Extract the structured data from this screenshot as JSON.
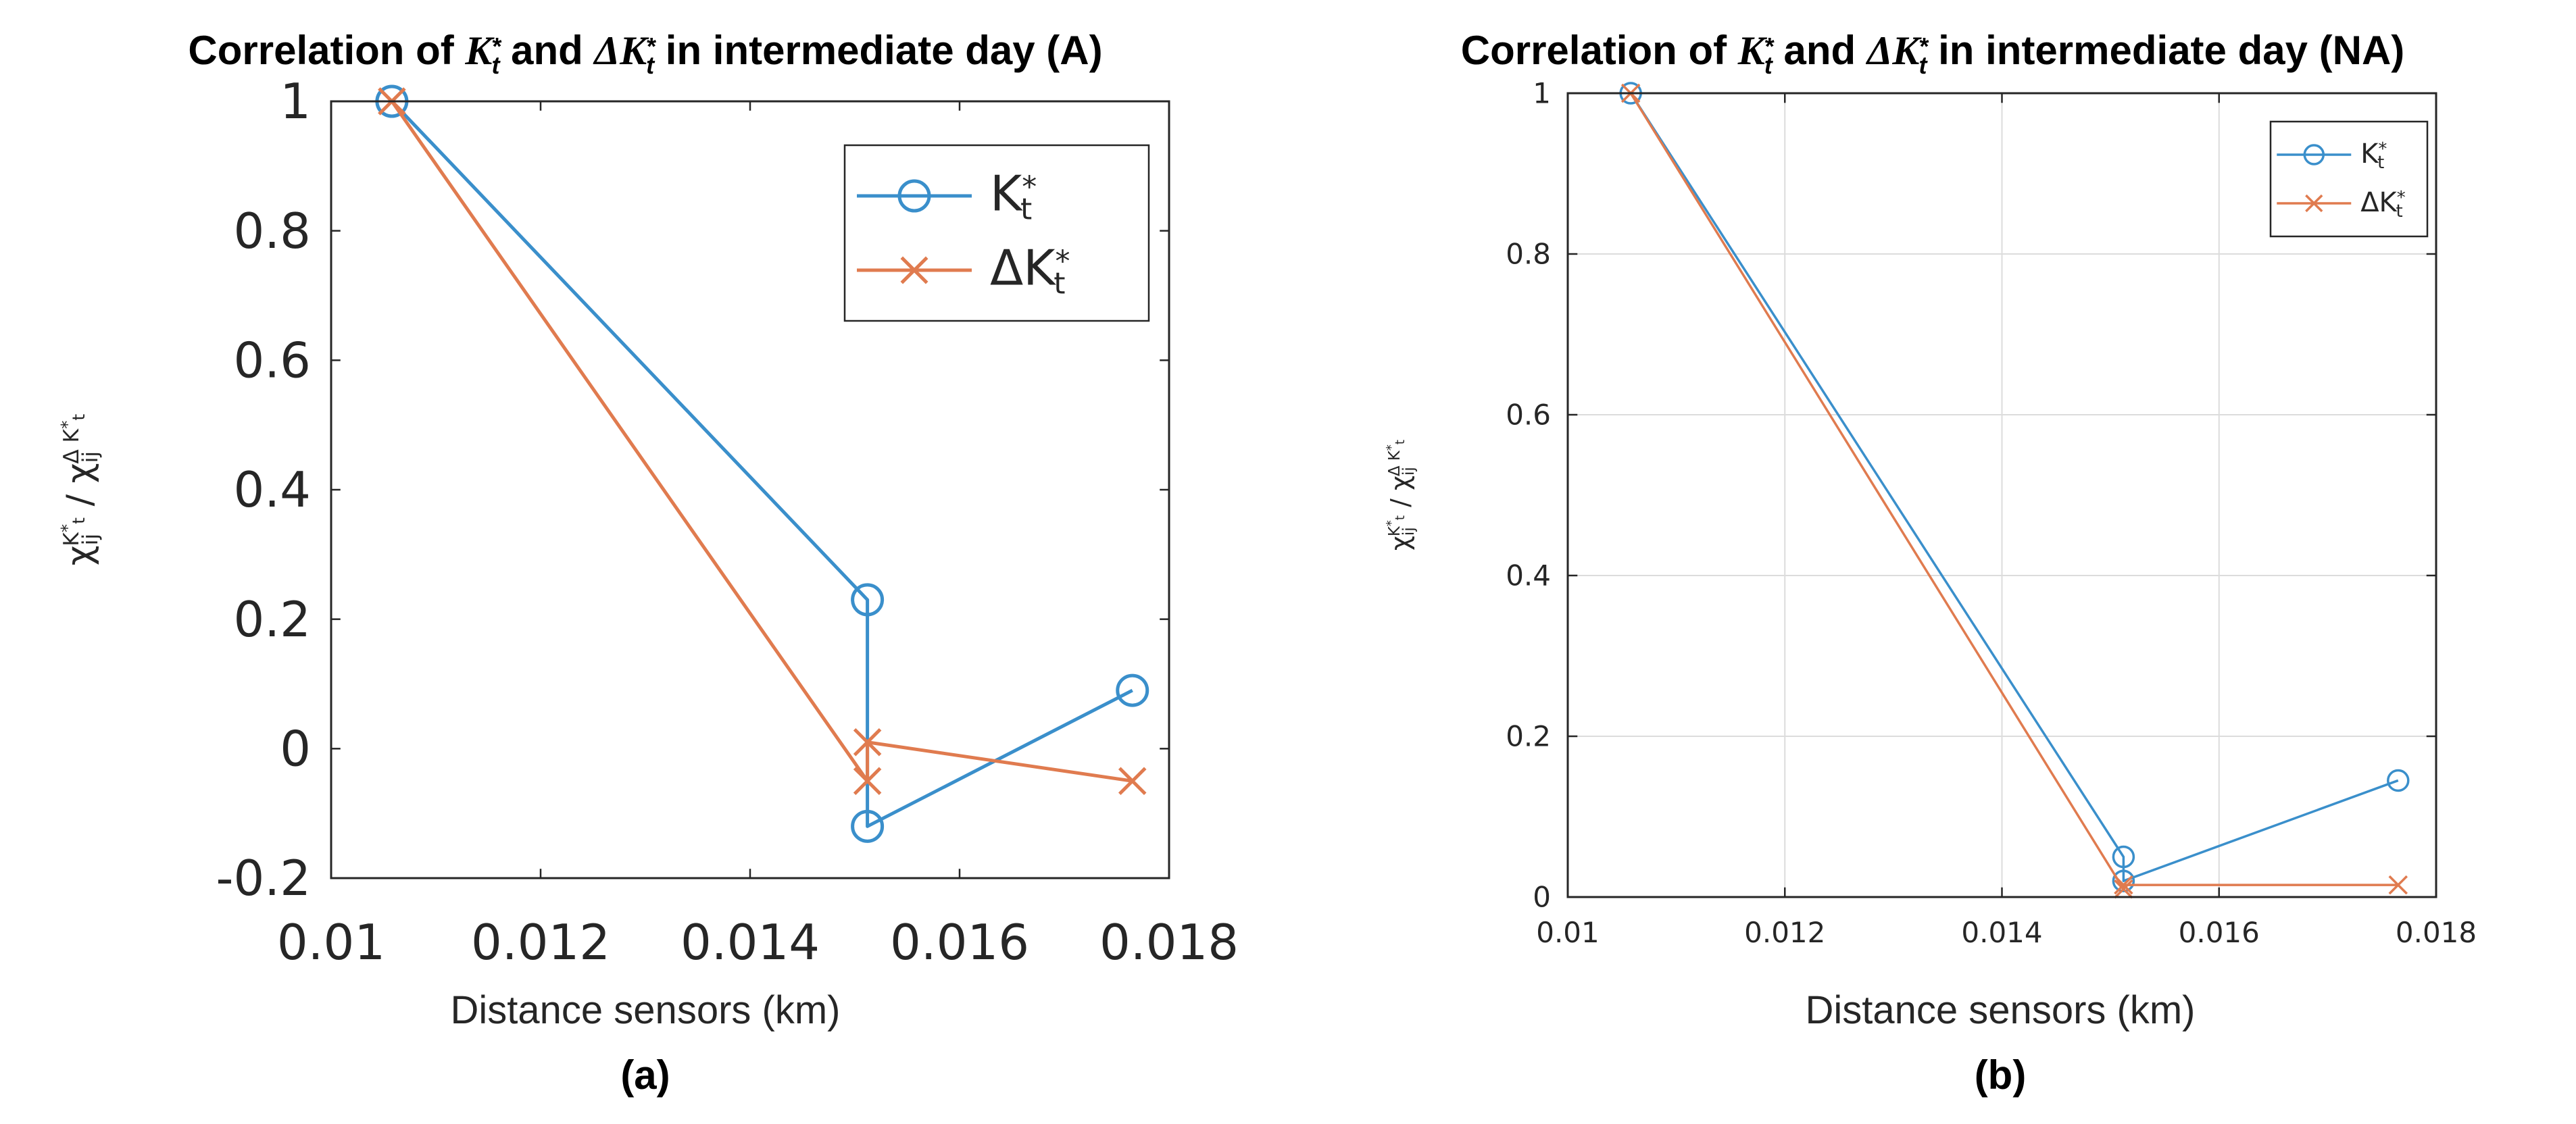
{
  "chart_data": [
    {
      "type": "line",
      "panel": "a",
      "title": "Correlation of K*t and ΔK*t in intermediate day (A)",
      "title_parts": {
        "prefix": "Correlation of ",
        "k": "K",
        "and": " and ",
        "dk": "ΔK",
        "suffix": " in intermediate day (A)",
        "star": "*",
        "sub": "t"
      },
      "xlabel": "Distance sensors (km)",
      "ylabel": "χij^K*t / χij^ΔK*t",
      "caption": "(a)",
      "xlim": [
        0.01,
        0.018
      ],
      "ylim": [
        -0.2,
        1
      ],
      "xticks": [
        0.01,
        0.012,
        0.014,
        0.016,
        0.018
      ],
      "xtick_labels": [
        "0.01",
        "0.012",
        "0.014",
        "0.016",
        "0.018"
      ],
      "yticks": [
        -0.2,
        0,
        0.2,
        0.4,
        0.6,
        0.8,
        1
      ],
      "ytick_labels": [
        "-0.2",
        "0",
        "0.2",
        "0.4",
        "0.6",
        "0.8",
        "1"
      ],
      "grid": false,
      "legend_position": "top-right",
      "series": [
        {
          "name": "K*t",
          "legend_main": "K",
          "legend_sup": "*",
          "legend_sub": "t",
          "color": "#3A8FCB",
          "marker": "circle",
          "x": [
            0.01058,
            0.01512,
            0.01512,
            0.01765
          ],
          "y": [
            1.0,
            0.23,
            -0.12,
            0.09
          ]
        },
        {
          "name": "ΔK*t",
          "legend_main": "ΔK",
          "legend_sup": "*",
          "legend_sub": "t",
          "color": "#E07B4F",
          "marker": "x",
          "x": [
            0.01058,
            0.01512,
            0.01512,
            0.01765
          ],
          "y": [
            1.0,
            -0.05,
            0.01,
            -0.05
          ]
        }
      ]
    },
    {
      "type": "line",
      "panel": "b",
      "title": "Correlation of K*t and ΔK*t in intermediate day (NA)",
      "title_parts": {
        "prefix": "Correlation of ",
        "k": "K",
        "and": " and ",
        "dk": "ΔK",
        "suffix": " in intermediate day (NA)",
        "star": "*",
        "sub": "t"
      },
      "xlabel": "Distance sensors (km)",
      "ylabel": "χij^K*t / χij^ΔK*t",
      "caption": "(b)",
      "xlim": [
        0.01,
        0.018
      ],
      "ylim": [
        0,
        1
      ],
      "xticks": [
        0.01,
        0.012,
        0.014,
        0.016,
        0.018
      ],
      "xtick_labels": [
        "0.01",
        "0.012",
        "0.014",
        "0.016",
        "0.018"
      ],
      "yticks": [
        0,
        0.2,
        0.4,
        0.6,
        0.8,
        1
      ],
      "ytick_labels": [
        "0",
        "0.2",
        "0.4",
        "0.6",
        "0.8",
        "1"
      ],
      "grid": true,
      "legend_position": "top-right",
      "series": [
        {
          "name": "K*t",
          "legend_main": "K",
          "legend_sup": "*",
          "legend_sub": "t",
          "color": "#3A8FCB",
          "marker": "circle",
          "x": [
            0.01058,
            0.01512,
            0.01512,
            0.01765
          ],
          "y": [
            1.0,
            0.05,
            0.02,
            0.145
          ]
        },
        {
          "name": "ΔK*t",
          "legend_main": "ΔK",
          "legend_sup": "*",
          "legend_sub": "t",
          "color": "#E07B4F",
          "marker": "x",
          "x": [
            0.01058,
            0.01512,
            0.01512,
            0.01765
          ],
          "y": [
            1.0,
            0.01,
            0.015,
            0.015
          ]
        }
      ]
    }
  ]
}
